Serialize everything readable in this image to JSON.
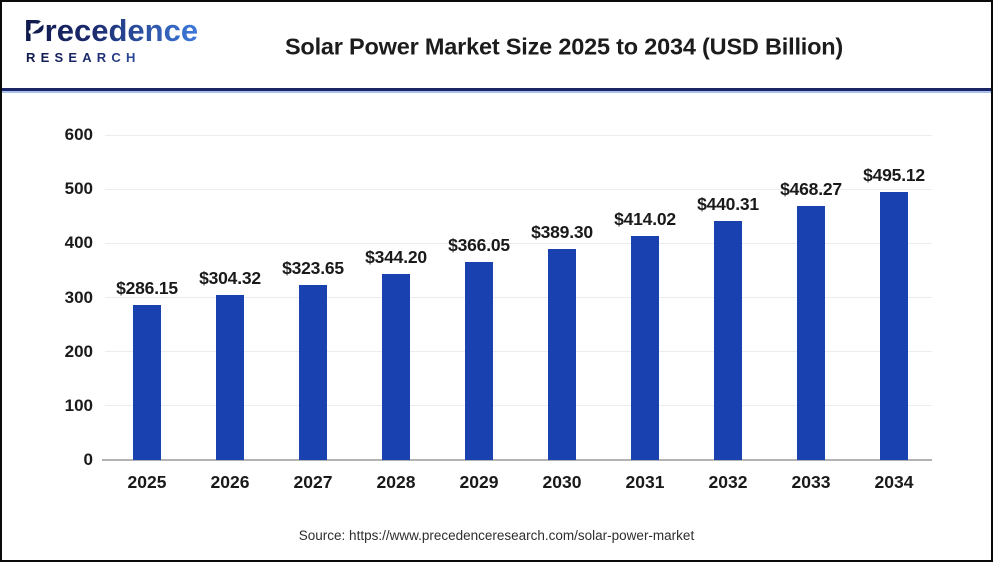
{
  "logo": {
    "line1": "Precedence",
    "line2": "RESEARCH"
  },
  "header": {
    "title": "Solar Power Market Size 2025 to 2034 (USD Billion)"
  },
  "chart_data": {
    "type": "bar",
    "title": "Solar Power Market Size 2025 to 2034 (USD Billion)",
    "categories": [
      "2025",
      "2026",
      "2027",
      "2028",
      "2029",
      "2030",
      "2031",
      "2032",
      "2033",
      "2034"
    ],
    "values": [
      286.15,
      304.32,
      323.65,
      344.2,
      366.05,
      389.3,
      414.02,
      440.31,
      468.27,
      495.12
    ],
    "labels": [
      "$286.15",
      "$304.32",
      "$323.65",
      "$344.20",
      "$366.05",
      "$389.30",
      "$414.02",
      "$440.31",
      "$468.27",
      "$495.12"
    ],
    "xlabel": "",
    "ylabel": "",
    "ylim": [
      0,
      600
    ],
    "yticks": [
      0,
      100,
      200,
      300,
      400,
      500,
      600
    ],
    "grid": true,
    "legend": "none",
    "bar_color": "#1a41b0"
  },
  "footer": {
    "source": "Source: https://www.precedenceresearch.com/solar-power-market"
  },
  "colors": {
    "bar": "#1a41b0",
    "text": "#1a1a1a",
    "gridline": "#ececec",
    "axis_line": "#b3b3b3",
    "separator_dark": "#1b2464",
    "separator_light": "#a9c0ea",
    "logo_gradient_start": "#10194a",
    "logo_gradient_end": "#3f7de0",
    "border": "#0b0b0b"
  }
}
